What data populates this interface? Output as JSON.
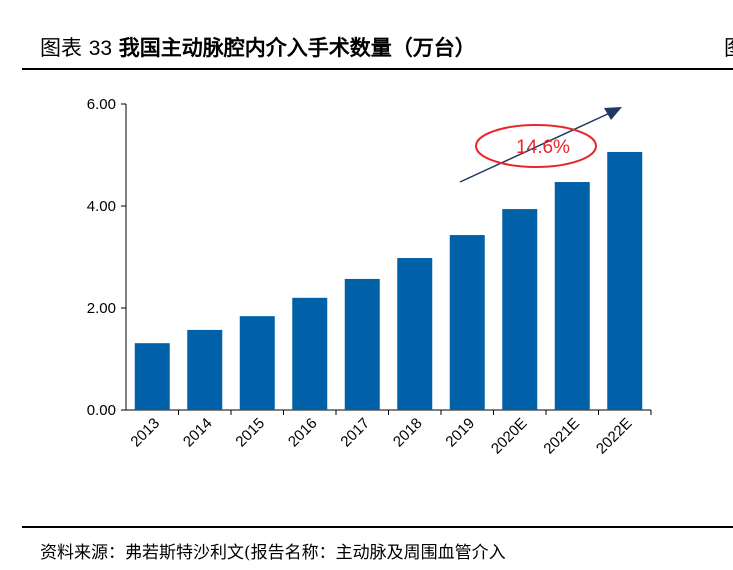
{
  "header": {
    "title_prefix": "图表",
    "title_number": "33",
    "title_text": "我国主动脉腔内介入手术数量（万台）",
    "title_cut": "图"
  },
  "footer": {
    "source": "资料来源：弗若斯特沙利文(报告名称：主动脉及周围血管介入"
  },
  "colors": {
    "bar": "#0060A8",
    "annotation": "#E8262B",
    "arrow": "#1F3864"
  },
  "chart_data": {
    "type": "bar",
    "title": "我国主动脉腔内介入手术数量（万台）",
    "categories": [
      "2013",
      "2014",
      "2015",
      "2016",
      "2017",
      "2018",
      "2019",
      "2020E",
      "2021E",
      "2022E"
    ],
    "values": [
      1.31,
      1.57,
      1.84,
      2.2,
      2.57,
      2.98,
      3.43,
      3.94,
      4.47,
      5.06
    ],
    "ylim": [
      0,
      6
    ],
    "yticks": [
      "0.00",
      "2.00",
      "4.00",
      "6.00"
    ],
    "grid": false,
    "annotation": "14.6%"
  }
}
